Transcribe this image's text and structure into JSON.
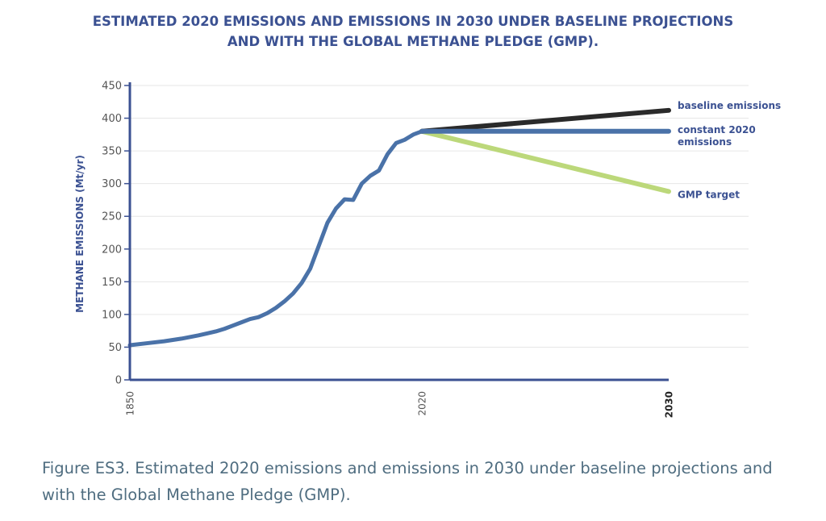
{
  "chart_data": {
    "type": "line",
    "title_lines": [
      "ESTIMATED 2020 EMISSIONS AND EMISSIONS IN 2030 UNDER BASELINE PROJECTIONS",
      "AND WITH THE GLOBAL METHANE PLEDGE (GMP)."
    ],
    "xlabel": "",
    "ylabel": "METHANE EMISSIONS (Mt/yr)",
    "ylim": [
      0,
      450
    ],
    "y_ticks": [
      0,
      50,
      100,
      150,
      200,
      250,
      300,
      350,
      400,
      450
    ],
    "x_ticks": [
      "1850",
      "2020",
      "2030"
    ],
    "grid": true,
    "historical": {
      "x": [
        1850,
        1860,
        1870,
        1880,
        1890,
        1900,
        1905,
        1910,
        1915,
        1920,
        1925,
        1930,
        1935,
        1940,
        1945,
        1950,
        1955,
        1960,
        1965,
        1970,
        1975,
        1980,
        1985,
        1990,
        1995,
        2000,
        2005,
        2010,
        2015,
        2020
      ],
      "values": [
        53,
        56,
        59,
        63,
        68,
        74,
        78,
        83,
        88,
        93,
        96,
        102,
        110,
        120,
        132,
        148,
        170,
        205,
        240,
        262,
        276,
        275,
        300,
        312,
        320,
        345,
        362,
        367,
        375,
        380
      ]
    },
    "projections": {
      "x": [
        2020,
        2030
      ],
      "series": [
        {
          "name": "baseline emissions",
          "values": [
            380,
            412
          ],
          "color": "#2a2a2a"
        },
        {
          "name": "constant 2020 emissions",
          "values": [
            380,
            380
          ],
          "color": "#4a72a8"
        },
        {
          "name": "GMP target",
          "values": [
            380,
            288
          ],
          "color": "#bcd87a"
        }
      ]
    },
    "colors": {
      "axis": "#3b5192",
      "grid": "#e6e6e6",
      "historical_line": "#4a72a8"
    }
  },
  "caption": "Figure ES3. Estimated 2020 emissions and emissions in 2030 under baseline projections and with the Global Methane Pledge (GMP)."
}
